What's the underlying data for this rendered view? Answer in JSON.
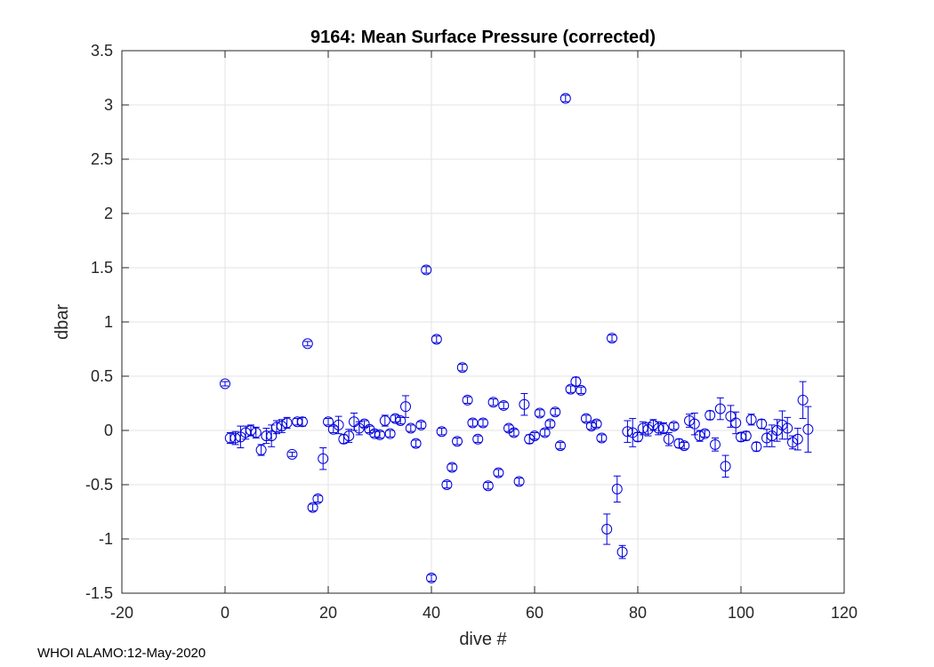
{
  "chart_data": {
    "type": "scatter",
    "title": "9164: Mean Surface Pressure (corrected)",
    "xlabel": "dive #",
    "ylabel": "dbar",
    "xlim": [
      -20,
      120
    ],
    "ylim": [
      -1.5,
      3.5
    ],
    "xticks": [
      -20,
      0,
      20,
      40,
      60,
      80,
      100,
      120
    ],
    "yticks": [
      -1.5,
      -1,
      -0.5,
      0,
      0.5,
      1,
      1.5,
      2,
      2.5,
      3,
      3.5
    ],
    "grid": true,
    "color": "#0000dd",
    "marker": "open-circle",
    "series": [
      {
        "name": "mean surface pressure",
        "points": [
          {
            "x": 0,
            "y": 0.43,
            "err": 0.02
          },
          {
            "x": 1,
            "y": -0.07,
            "err": 0.05
          },
          {
            "x": 2,
            "y": -0.07,
            "err": 0.06
          },
          {
            "x": 3,
            "y": -0.06,
            "err": 0.1
          },
          {
            "x": 4,
            "y": -0.02,
            "err": 0.06
          },
          {
            "x": 5,
            "y": 0.0,
            "err": 0.05
          },
          {
            "x": 6,
            "y": -0.02,
            "err": 0.05
          },
          {
            "x": 7,
            "y": -0.18,
            "err": 0.05
          },
          {
            "x": 8,
            "y": -0.05,
            "err": 0.07
          },
          {
            "x": 9,
            "y": -0.05,
            "err": 0.1
          },
          {
            "x": 10,
            "y": 0.03,
            "err": 0.06
          },
          {
            "x": 11,
            "y": 0.04,
            "err": 0.06
          },
          {
            "x": 12,
            "y": 0.07,
            "err": 0.05
          },
          {
            "x": 13,
            "y": -0.22,
            "err": 0.02
          },
          {
            "x": 14,
            "y": 0.08,
            "err": 0.03
          },
          {
            "x": 15,
            "y": 0.08,
            "err": 0.04
          },
          {
            "x": 16,
            "y": 0.8,
            "err": 0.02
          },
          {
            "x": 17,
            "y": -0.71,
            "err": 0.03
          },
          {
            "x": 18,
            "y": -0.63,
            "err": 0.03
          },
          {
            "x": 19,
            "y": -0.26,
            "err": 0.1
          },
          {
            "x": 20,
            "y": 0.08,
            "err": 0.03
          },
          {
            "x": 21,
            "y": 0.01,
            "err": 0.03
          },
          {
            "x": 22,
            "y": 0.05,
            "err": 0.08
          },
          {
            "x": 23,
            "y": -0.08,
            "err": 0.04
          },
          {
            "x": 24,
            "y": -0.05,
            "err": 0.06
          },
          {
            "x": 25,
            "y": 0.08,
            "err": 0.08
          },
          {
            "x": 26,
            "y": 0.02,
            "err": 0.06
          },
          {
            "x": 27,
            "y": 0.06,
            "err": 0.03
          },
          {
            "x": 28,
            "y": 0.01,
            "err": 0.03
          },
          {
            "x": 29,
            "y": -0.03,
            "err": 0.03
          },
          {
            "x": 30,
            "y": -0.04,
            "err": 0.03
          },
          {
            "x": 31,
            "y": 0.09,
            "err": 0.05
          },
          {
            "x": 32,
            "y": -0.03,
            "err": 0.03
          },
          {
            "x": 33,
            "y": 0.11,
            "err": 0.03
          },
          {
            "x": 34,
            "y": 0.09,
            "err": 0.03
          },
          {
            "x": 35,
            "y": 0.22,
            "err": 0.1
          },
          {
            "x": 36,
            "y": 0.02,
            "err": 0.03
          },
          {
            "x": 37,
            "y": -0.12,
            "err": 0.03
          },
          {
            "x": 38,
            "y": 0.05,
            "err": 0.03
          },
          {
            "x": 39,
            "y": 1.48,
            "err": 0.03
          },
          {
            "x": 40,
            "y": -1.36,
            "err": 0.03
          },
          {
            "x": 41,
            "y": 0.84,
            "err": 0.03
          },
          {
            "x": 42,
            "y": -0.01,
            "err": 0.03
          },
          {
            "x": 43,
            "y": -0.5,
            "err": 0.03
          },
          {
            "x": 44,
            "y": -0.34,
            "err": 0.03
          },
          {
            "x": 45,
            "y": -0.1,
            "err": 0.03
          },
          {
            "x": 46,
            "y": 0.58,
            "err": 0.03
          },
          {
            "x": 47,
            "y": 0.28,
            "err": 0.03
          },
          {
            "x": 48,
            "y": 0.07,
            "err": 0.03
          },
          {
            "x": 49,
            "y": -0.08,
            "err": 0.03
          },
          {
            "x": 50,
            "y": 0.07,
            "err": 0.03
          },
          {
            "x": 51,
            "y": -0.51,
            "err": 0.03
          },
          {
            "x": 52,
            "y": 0.26,
            "err": 0.03
          },
          {
            "x": 53,
            "y": -0.39,
            "err": 0.03
          },
          {
            "x": 54,
            "y": 0.23,
            "err": 0.03
          },
          {
            "x": 55,
            "y": 0.02,
            "err": 0.03
          },
          {
            "x": 56,
            "y": -0.02,
            "err": 0.03
          },
          {
            "x": 57,
            "y": -0.47,
            "err": 0.03
          },
          {
            "x": 58,
            "y": 0.24,
            "err": 0.1
          },
          {
            "x": 59,
            "y": -0.08,
            "err": 0.04
          },
          {
            "x": 60,
            "y": -0.05,
            "err": 0.03
          },
          {
            "x": 61,
            "y": 0.16,
            "err": 0.03
          },
          {
            "x": 62,
            "y": -0.02,
            "err": 0.03
          },
          {
            "x": 63,
            "y": 0.06,
            "err": 0.03
          },
          {
            "x": 64,
            "y": 0.17,
            "err": 0.03
          },
          {
            "x": 65,
            "y": -0.14,
            "err": 0.03
          },
          {
            "x": 66,
            "y": 3.06,
            "err": 0.03
          },
          {
            "x": 67,
            "y": 0.38,
            "err": 0.03
          },
          {
            "x": 68,
            "y": 0.45,
            "err": 0.04
          },
          {
            "x": 69,
            "y": 0.37,
            "err": 0.03
          },
          {
            "x": 70,
            "y": 0.11,
            "err": 0.03
          },
          {
            "x": 71,
            "y": 0.04,
            "err": 0.03
          },
          {
            "x": 72,
            "y": 0.06,
            "err": 0.03
          },
          {
            "x": 73,
            "y": -0.07,
            "err": 0.03
          },
          {
            "x": 74,
            "y": -0.91,
            "err": 0.14
          },
          {
            "x": 75,
            "y": 0.85,
            "err": 0.03
          },
          {
            "x": 76,
            "y": -0.54,
            "err": 0.12
          },
          {
            "x": 77,
            "y": -1.12,
            "err": 0.06
          },
          {
            "x": 78,
            "y": -0.01,
            "err": 0.1
          },
          {
            "x": 79,
            "y": -0.02,
            "err": 0.13
          },
          {
            "x": 80,
            "y": -0.06,
            "err": 0.04
          },
          {
            "x": 81,
            "y": 0.02,
            "err": 0.06
          },
          {
            "x": 82,
            "y": 0.01,
            "err": 0.06
          },
          {
            "x": 83,
            "y": 0.05,
            "err": 0.05
          },
          {
            "x": 84,
            "y": 0.02,
            "err": 0.06
          },
          {
            "x": 85,
            "y": 0.02,
            "err": 0.05
          },
          {
            "x": 86,
            "y": -0.08,
            "err": 0.06
          },
          {
            "x": 87,
            "y": 0.04,
            "err": 0.03
          },
          {
            "x": 88,
            "y": -0.12,
            "err": 0.04
          },
          {
            "x": 89,
            "y": -0.14,
            "err": 0.03
          },
          {
            "x": 90,
            "y": 0.09,
            "err": 0.06
          },
          {
            "x": 91,
            "y": 0.06,
            "err": 0.1
          },
          {
            "x": 92,
            "y": -0.05,
            "err": 0.05
          },
          {
            "x": 93,
            "y": -0.03,
            "err": 0.03
          },
          {
            "x": 94,
            "y": 0.14,
            "err": 0.04
          },
          {
            "x": 95,
            "y": -0.13,
            "err": 0.06
          },
          {
            "x": 96,
            "y": 0.2,
            "err": 0.1
          },
          {
            "x": 97,
            "y": -0.33,
            "err": 0.1
          },
          {
            "x": 98,
            "y": 0.13,
            "err": 0.1
          },
          {
            "x": 99,
            "y": 0.07,
            "err": 0.1
          },
          {
            "x": 100,
            "y": -0.06,
            "err": 0.04
          },
          {
            "x": 101,
            "y": -0.05,
            "err": 0.04
          },
          {
            "x": 102,
            "y": 0.1,
            "err": 0.05
          },
          {
            "x": 103,
            "y": -0.15,
            "err": 0.04
          },
          {
            "x": 104,
            "y": 0.06,
            "err": 0.04
          },
          {
            "x": 105,
            "y": -0.07,
            "err": 0.08
          },
          {
            "x": 106,
            "y": -0.05,
            "err": 0.1
          },
          {
            "x": 107,
            "y": 0.0,
            "err": 0.1
          },
          {
            "x": 108,
            "y": 0.05,
            "err": 0.13
          },
          {
            "x": 109,
            "y": 0.02,
            "err": 0.1
          },
          {
            "x": 110,
            "y": -0.11,
            "err": 0.06
          },
          {
            "x": 111,
            "y": -0.08,
            "err": 0.1
          },
          {
            "x": 112,
            "y": 0.28,
            "err": 0.17
          },
          {
            "x": 113,
            "y": 0.01,
            "err": 0.21
          }
        ]
      }
    ]
  },
  "footer": {
    "text": "WHOI ALAMO:12-May-2020"
  }
}
